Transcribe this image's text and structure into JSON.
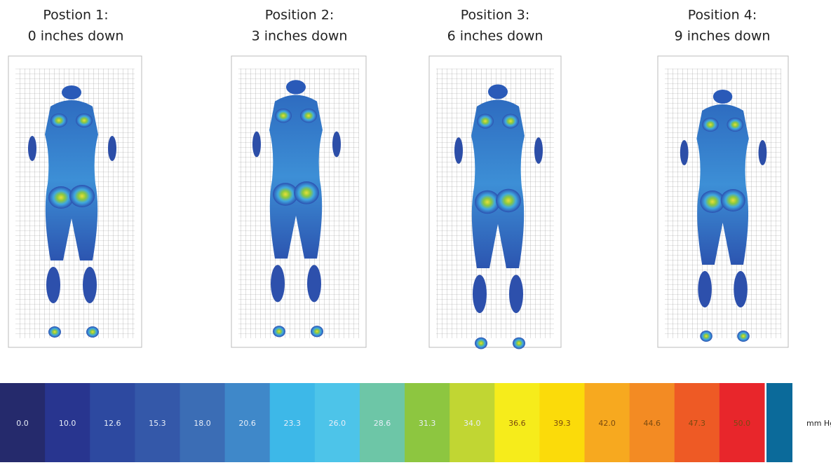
{
  "panels": [
    {
      "title": "Postion 1:",
      "subtitle": "0 inches down"
    },
    {
      "title": "Position 2:",
      "subtitle": "3 inches down"
    },
    {
      "title": "Position 3:",
      "subtitle": "6 inches down"
    },
    {
      "title": "Position 4:",
      "subtitle": "9 inches down"
    }
  ],
  "legend": {
    "labels": [
      "0.0",
      "10.0",
      "12.6",
      "15.3",
      "18.0",
      "20.6",
      "23.3",
      "26.0",
      "28.6",
      "31.3",
      "34.0",
      "36.6",
      "39.3",
      "42.0",
      "44.6",
      "47.3",
      "50.0"
    ],
    "colors": [
      "#252a6c",
      "#28358f",
      "#2d49a0",
      "#3458a9",
      "#3b6db5",
      "#3f88c9",
      "#3db8e8",
      "#4dc4e9",
      "#6dc6a7",
      "#8dc640",
      "#c1d633",
      "#f6ec1b",
      "#fbdb0a",
      "#f7a91f",
      "#f38b23",
      "#ee5a25",
      "#e8262b"
    ],
    "unit": "mm Hg"
  }
}
